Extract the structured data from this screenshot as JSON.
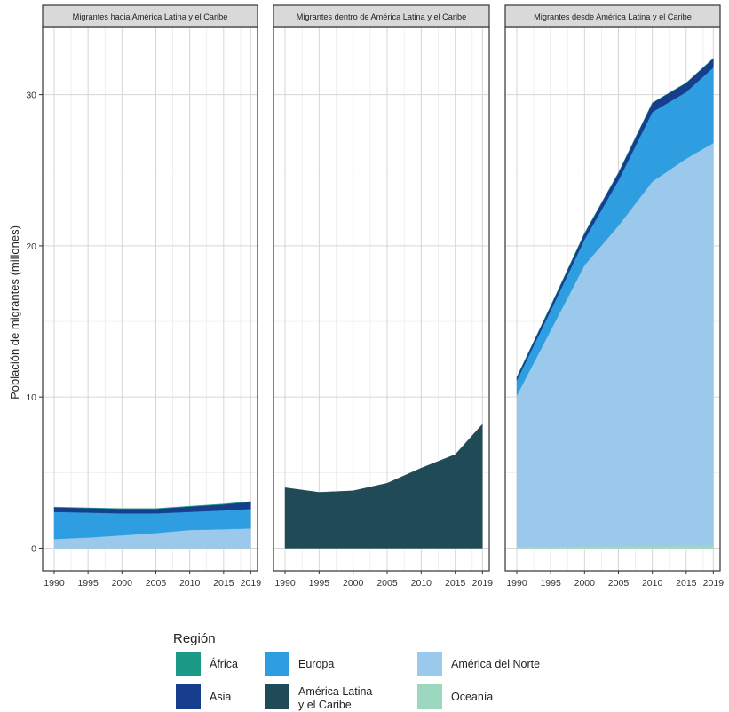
{
  "chart_data": {
    "type": "area",
    "ylabel": "Población de migrantes (millones)",
    "yticks": [
      0,
      10,
      20,
      30
    ],
    "ylim": [
      -1.5,
      34.5
    ],
    "x": [
      1990,
      1995,
      2000,
      2005,
      2010,
      2015,
      2019
    ],
    "xticks": [
      1990,
      1995,
      2000,
      2005,
      2010,
      2015,
      2019
    ],
    "stack_order": [
      "Oceanía",
      "América del Norte",
      "América Latina y el Caribe",
      "Europa",
      "Asia",
      "África"
    ],
    "colors": {
      "África": "#1a9a86",
      "Asia": "#173e8c",
      "Europa": "#2f9ee0",
      "América Latina y el Caribe": "#1f4a56",
      "América del Norte": "#9bc9ec",
      "Oceanía": "#9bd8bf"
    },
    "legend": {
      "title": "Región",
      "placement": "bottom",
      "entries": [
        {
          "label": "África",
          "color": "#1a9a86"
        },
        {
          "label": "Asia",
          "color": "#173e8c"
        },
        {
          "label": "Europa",
          "color": "#2f9ee0"
        },
        {
          "label": "América Latina\ny el Caribe",
          "color": "#1f4a56"
        },
        {
          "label": "América del Norte",
          "color": "#9bc9ec"
        },
        {
          "label": "Oceanía",
          "color": "#9bd8bf"
        }
      ]
    },
    "panels": [
      {
        "title": "Migrantes hacia América Latina y el Caribe",
        "series": [
          {
            "name": "Oceanía",
            "values": [
              0,
              0,
              0,
              0,
              0,
              0,
              0
            ]
          },
          {
            "name": "América del Norte",
            "values": [
              0.6,
              0.7,
              0.85,
              1.0,
              1.2,
              1.25,
              1.3
            ]
          },
          {
            "name": "Europa",
            "values": [
              1.8,
              1.65,
              1.45,
              1.3,
              1.2,
              1.25,
              1.3
            ]
          },
          {
            "name": "Asia",
            "values": [
              0.3,
              0.3,
              0.3,
              0.3,
              0.35,
              0.4,
              0.45
            ]
          },
          {
            "name": "África",
            "values": [
              0.02,
              0.02,
              0.02,
              0.02,
              0.03,
              0.03,
              0.04
            ]
          }
        ]
      },
      {
        "title": "Migrantes dentro de América Latina y el Caribe",
        "series": [
          {
            "name": "América Latina y el Caribe",
            "values": [
              4.0,
              3.7,
              3.8,
              4.3,
              5.3,
              6.2,
              8.2
            ]
          }
        ]
      },
      {
        "title": "Migrantes desde América Latina y el Caribe",
        "series": [
          {
            "name": "Oceanía",
            "values": [
              0.1,
              0.1,
              0.12,
              0.13,
              0.15,
              0.17,
              0.2
            ]
          },
          {
            "name": "América del Norte",
            "values": [
              10.0,
              14.3,
              18.6,
              21.2,
              24.1,
              25.6,
              26.6
            ]
          },
          {
            "name": "Europa",
            "values": [
              1.0,
              1.3,
              1.7,
              3.0,
              4.6,
              4.4,
              5.0
            ]
          },
          {
            "name": "Asia",
            "values": [
              0.2,
              0.3,
              0.4,
              0.5,
              0.6,
              0.6,
              0.6
            ]
          },
          {
            "name": "África",
            "values": [
              0.01,
              0.01,
              0.01,
              0.01,
              0.01,
              0.01,
              0.01
            ]
          }
        ]
      }
    ]
  }
}
